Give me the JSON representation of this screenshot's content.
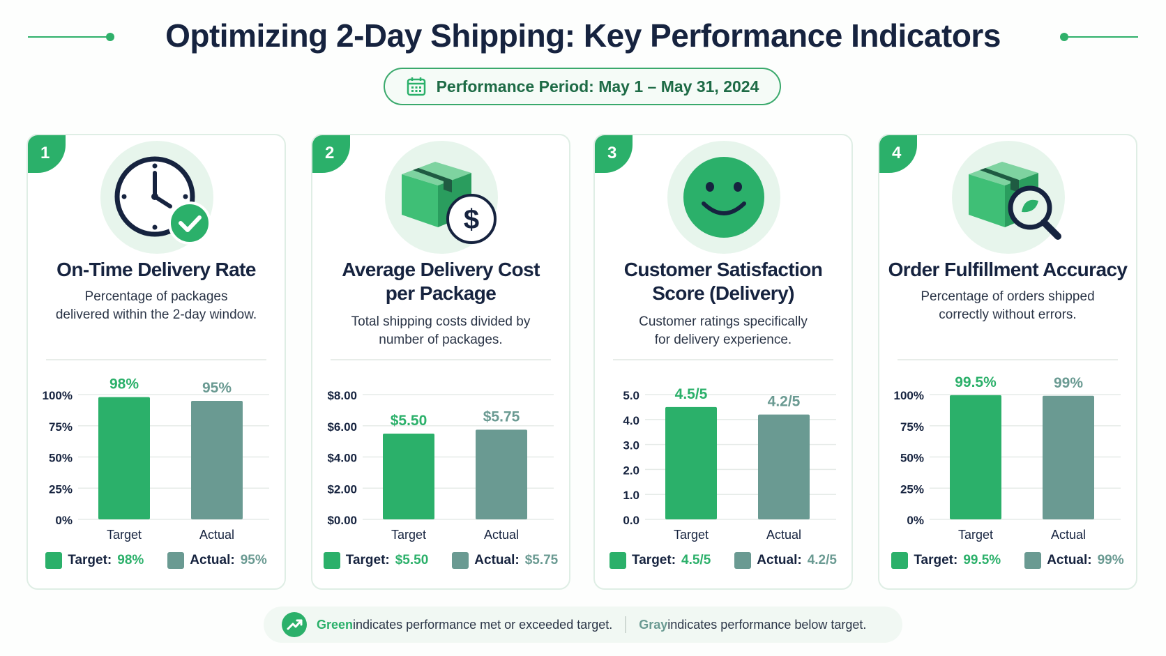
{
  "title": "Optimizing 2-Day Shipping: Key Performance Indicators",
  "period": "Performance Period: May 1 – May 31, 2024",
  "colors": {
    "target": "#2bb06a",
    "actual": "#6a9a92",
    "accent": "#2bb06a",
    "text": "#16233f"
  },
  "cards": [
    {
      "num": "1",
      "icon": "clock-check-icon",
      "title": "On-Time Delivery Rate",
      "desc1": "Percentage of packages",
      "desc2": "delivered within the 2-day window.",
      "legend_target_label": "Target:",
      "legend_target_value": "98%",
      "legend_actual_label": "Actual:",
      "legend_actual_value": "95%"
    },
    {
      "num": "2",
      "icon": "box-dollar-icon",
      "title": "Average Delivery Cost per Package",
      "desc1": "Total shipping costs divided by",
      "desc2": "number of packages.",
      "legend_target_label": "Target:",
      "legend_target_value": "$5.50",
      "legend_actual_label": "Actual:",
      "legend_actual_value": "$5.75"
    },
    {
      "num": "3",
      "icon": "smiley-icon",
      "title": "Customer Satisfaction Score (Delivery)",
      "desc1": "Customer ratings specifically",
      "desc2": "for delivery experience.",
      "legend_target_label": "Target:",
      "legend_target_value": "4.5/5",
      "legend_actual_label": "Actual:",
      "legend_actual_value": "4.2/5"
    },
    {
      "num": "4",
      "icon": "box-magnifier-icon",
      "title": "Order Fulfillment Accuracy",
      "desc1": "Percentage of orders shipped",
      "desc2": "correctly without errors.",
      "legend_target_label": "Target:",
      "legend_target_value": "99.5%",
      "legend_actual_label": "Actual:",
      "legend_actual_value": "99%"
    }
  ],
  "chart_data": [
    {
      "type": "bar",
      "categories": [
        "Target",
        "Actual"
      ],
      "values": [
        98,
        95
      ],
      "value_labels": [
        "98%",
        "95%"
      ],
      "ylim": [
        0,
        100
      ],
      "yticks": [
        0,
        25,
        50,
        75,
        100
      ],
      "ytick_labels": [
        "0%",
        "25%",
        "50%",
        "75%",
        "100%"
      ]
    },
    {
      "type": "bar",
      "categories": [
        "Target",
        "Actual"
      ],
      "values": [
        5.5,
        5.75
      ],
      "value_labels": [
        "$5.50",
        "$5.75"
      ],
      "ylim": [
        0,
        8
      ],
      "yticks": [
        0,
        2,
        4,
        6,
        8
      ],
      "ytick_labels": [
        "$0.00",
        "$2.00",
        "$4.00",
        "$6.00",
        "$8.00"
      ]
    },
    {
      "type": "bar",
      "categories": [
        "Target",
        "Actual"
      ],
      "values": [
        4.5,
        4.2
      ],
      "value_labels": [
        "4.5/5",
        "4.2/5"
      ],
      "ylim": [
        0,
        5
      ],
      "yticks": [
        0,
        1,
        2,
        3,
        4,
        5
      ],
      "ytick_labels": [
        "0.0",
        "1.0",
        "2.0",
        "3.0",
        "4.0",
        "5.0"
      ]
    },
    {
      "type": "bar",
      "categories": [
        "Target",
        "Actual"
      ],
      "values": [
        99.5,
        99
      ],
      "value_labels": [
        "99.5%",
        "99%"
      ],
      "ylim": [
        0,
        100
      ],
      "yticks": [
        0,
        25,
        50,
        75,
        100
      ],
      "ytick_labels": [
        "0%",
        "25%",
        "50%",
        "75%",
        "100%"
      ]
    }
  ],
  "footer": {
    "green_word": "Green",
    "green_text": " indicates performance met or exceeded target.",
    "gray_word": "Gray",
    "gray_text": " indicates performance below target."
  }
}
